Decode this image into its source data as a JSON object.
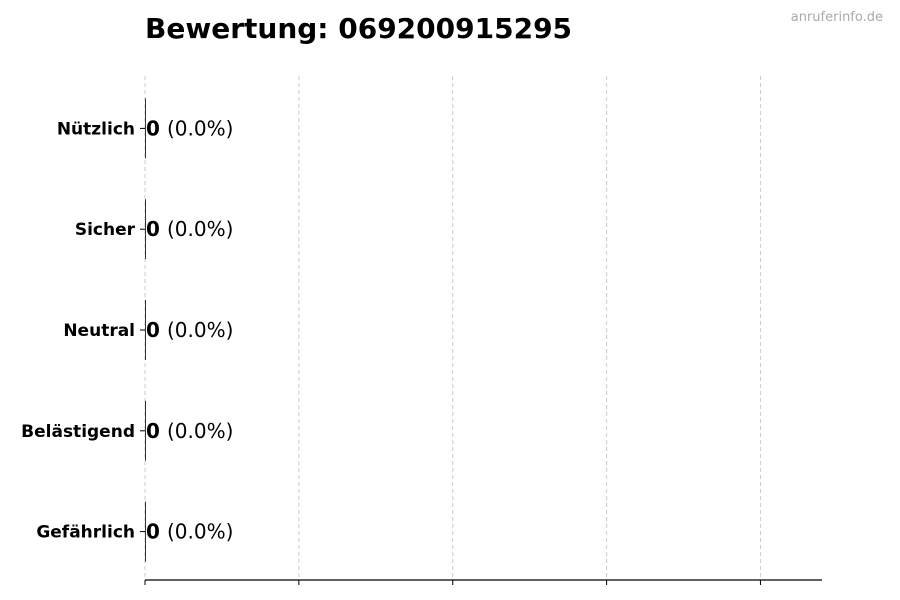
{
  "chart_data": {
    "type": "bar",
    "orientation": "horizontal",
    "title": "Bewertung: 069200915295",
    "categories": [
      "Nützlich",
      "Sicher",
      "Neutral",
      "Belästigend",
      "Gefährlich"
    ],
    "values": [
      0,
      0,
      0,
      0,
      0
    ],
    "value_labels": [
      "0",
      "0",
      "0",
      "0",
      "0"
    ],
    "percent_labels": [
      "(0.0%)",
      "(0.0%)",
      "(0.0%)",
      "(0.0%)",
      "(0.0%)"
    ],
    "xlim": [
      0,
      4.4
    ],
    "xticks": [
      0,
      1,
      2,
      3,
      4
    ],
    "xtick_labels_shown": false,
    "grid": "x, dashed",
    "bar_color": "#000000",
    "grid_color": "#cccccc"
  },
  "watermark": "anruferinfo.de"
}
